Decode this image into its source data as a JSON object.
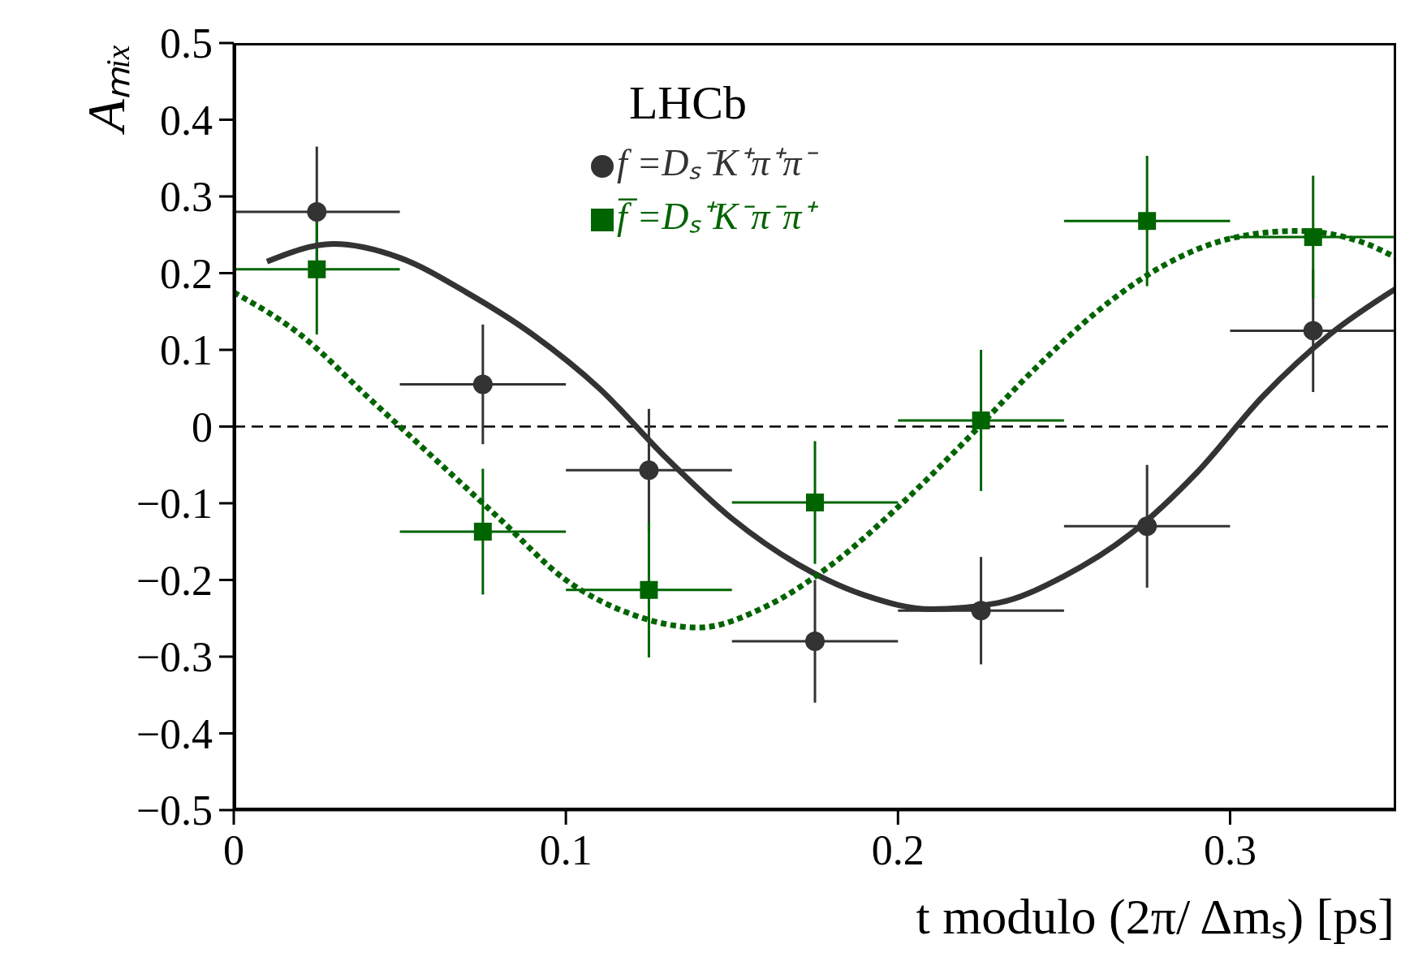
{
  "chart_data": {
    "type": "scatter",
    "xlabel": "t modulo (2π/ Δmₛ) [ps]",
    "ylabel": "Aₘᵢₓ",
    "annotations": [
      "LHCb"
    ],
    "xlim": [
      0,
      0.35
    ],
    "xticks": [
      0,
      0.1,
      0.2,
      0.3
    ],
    "ylim": [
      -0.5,
      0.5
    ],
    "yticks": [
      {
        "value": -0.5,
        "label": "−0.5"
      },
      {
        "value": -0.4,
        "label": "−0.4"
      },
      {
        "value": -0.3,
        "label": "−0.3"
      },
      {
        "value": -0.2,
        "label": "−0.2"
      },
      {
        "value": -0.1,
        "label": "−0.1"
      },
      0,
      0.1,
      0.2,
      0.3,
      0.4,
      0.5
    ],
    "grid": false,
    "legend": "top",
    "ref_lines": [
      {
        "axis": "y",
        "value": 0,
        "color": "#000000",
        "line_style": "dashed"
      }
    ],
    "series": [
      {
        "type": "scatter",
        "name": "f =Dₛ⁻K⁺π⁺π⁻",
        "color": "#333333",
        "marker": "circle",
        "x": [
          0.025,
          0.075,
          0.125,
          0.175,
          0.225,
          0.275,
          0.325
        ],
        "values": [
          0.28,
          0.055,
          -0.057,
          -0.28,
          -0.24,
          -0.13,
          0.125
        ],
        "errors": [
          0.085,
          0.078,
          0.08,
          0.08,
          0.07,
          0.08,
          0.08
        ],
        "xerrors": [
          0.025,
          0.025,
          0.025,
          0.025,
          0.025,
          0.025,
          0.025
        ]
      },
      {
        "type": "scatter",
        "name": "f̅ =Dₛ⁺K⁻π⁻π⁺",
        "color": "#006400",
        "marker": "square",
        "x": [
          0.025,
          0.075,
          0.125,
          0.175,
          0.225,
          0.275,
          0.325
        ],
        "values": [
          0.205,
          -0.137,
          -0.213,
          -0.099,
          0.008,
          0.268,
          0.247
        ],
        "errors": [
          0.085,
          0.082,
          0.088,
          0.08,
          0.092,
          0.085,
          0.08
        ],
        "xerrors": [
          0.025,
          0.025,
          0.025,
          0.025,
          0.025,
          0.025,
          0.025
        ]
      },
      {
        "type": "line",
        "color": "#333333",
        "line_style": "solid",
        "x": [
          0.01,
          0.03,
          0.05,
          0.07,
          0.09,
          0.11,
          0.13,
          0.15,
          0.17,
          0.19,
          0.21,
          0.23,
          0.25,
          0.27,
          0.29,
          0.31,
          0.33,
          0.35
        ],
        "values": [
          0.215,
          0.238,
          0.22,
          0.175,
          0.12,
          0.05,
          -0.04,
          -0.12,
          -0.18,
          -0.22,
          -0.238,
          -0.23,
          -0.195,
          -0.14,
          -0.06,
          0.04,
          0.12,
          0.18
        ]
      },
      {
        "type": "line",
        "color": "#006400",
        "line_style": "dotted",
        "x": [
          0.0,
          0.02,
          0.04,
          0.06,
          0.08,
          0.1,
          0.12,
          0.14,
          0.16,
          0.18,
          0.2,
          0.22,
          0.24,
          0.26,
          0.28,
          0.3,
          0.32,
          0.34,
          0.35
        ],
        "values": [
          0.175,
          0.12,
          0.04,
          -0.04,
          -0.12,
          -0.2,
          -0.245,
          -0.262,
          -0.235,
          -0.18,
          -0.105,
          -0.02,
          0.07,
          0.15,
          0.21,
          0.245,
          0.255,
          0.24,
          0.22
        ]
      }
    ]
  }
}
